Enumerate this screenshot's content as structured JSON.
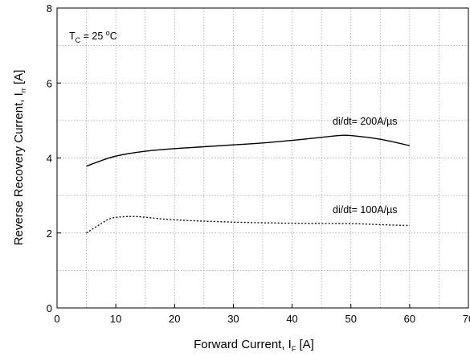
{
  "chart_data": {
    "type": "line",
    "title": "",
    "xlabel": {
      "main": "Forward Current, I",
      "sub": "F",
      "unit": " [A]"
    },
    "ylabel": {
      "main": "Reverse Recovery Current, I",
      "sub": "rr",
      "unit": " [A]"
    },
    "xlim": [
      0,
      70
    ],
    "ylim": [
      0,
      8
    ],
    "x_ticks": [
      "0",
      "10",
      "20",
      "30",
      "40",
      "50",
      "60",
      "70"
    ],
    "y_ticks": [
      "0",
      "2",
      "4",
      "6",
      "8"
    ],
    "grid": "dotted",
    "condition": {
      "prefix": "T",
      "sub": "C",
      "mid": " = 25 ",
      "sup": "o",
      "suffix": "C"
    },
    "series": [
      {
        "name": "di/dt= 200A/µs",
        "style": "solid",
        "x": [
          5,
          7,
          10,
          15,
          20,
          25,
          30,
          35,
          40,
          45,
          48,
          50,
          55,
          60
        ],
        "y": [
          3.78,
          3.9,
          4.05,
          4.18,
          4.25,
          4.3,
          4.35,
          4.4,
          4.47,
          4.55,
          4.6,
          4.6,
          4.5,
          4.33
        ]
      },
      {
        "name": "di/dt= 100A/µs",
        "style": "dotted",
        "x": [
          5,
          7,
          9,
          11,
          13,
          15,
          20,
          30,
          40,
          50,
          55,
          60
        ],
        "y": [
          2.0,
          2.2,
          2.38,
          2.43,
          2.44,
          2.42,
          2.35,
          2.29,
          2.26,
          2.25,
          2.22,
          2.2
        ]
      }
    ]
  }
}
